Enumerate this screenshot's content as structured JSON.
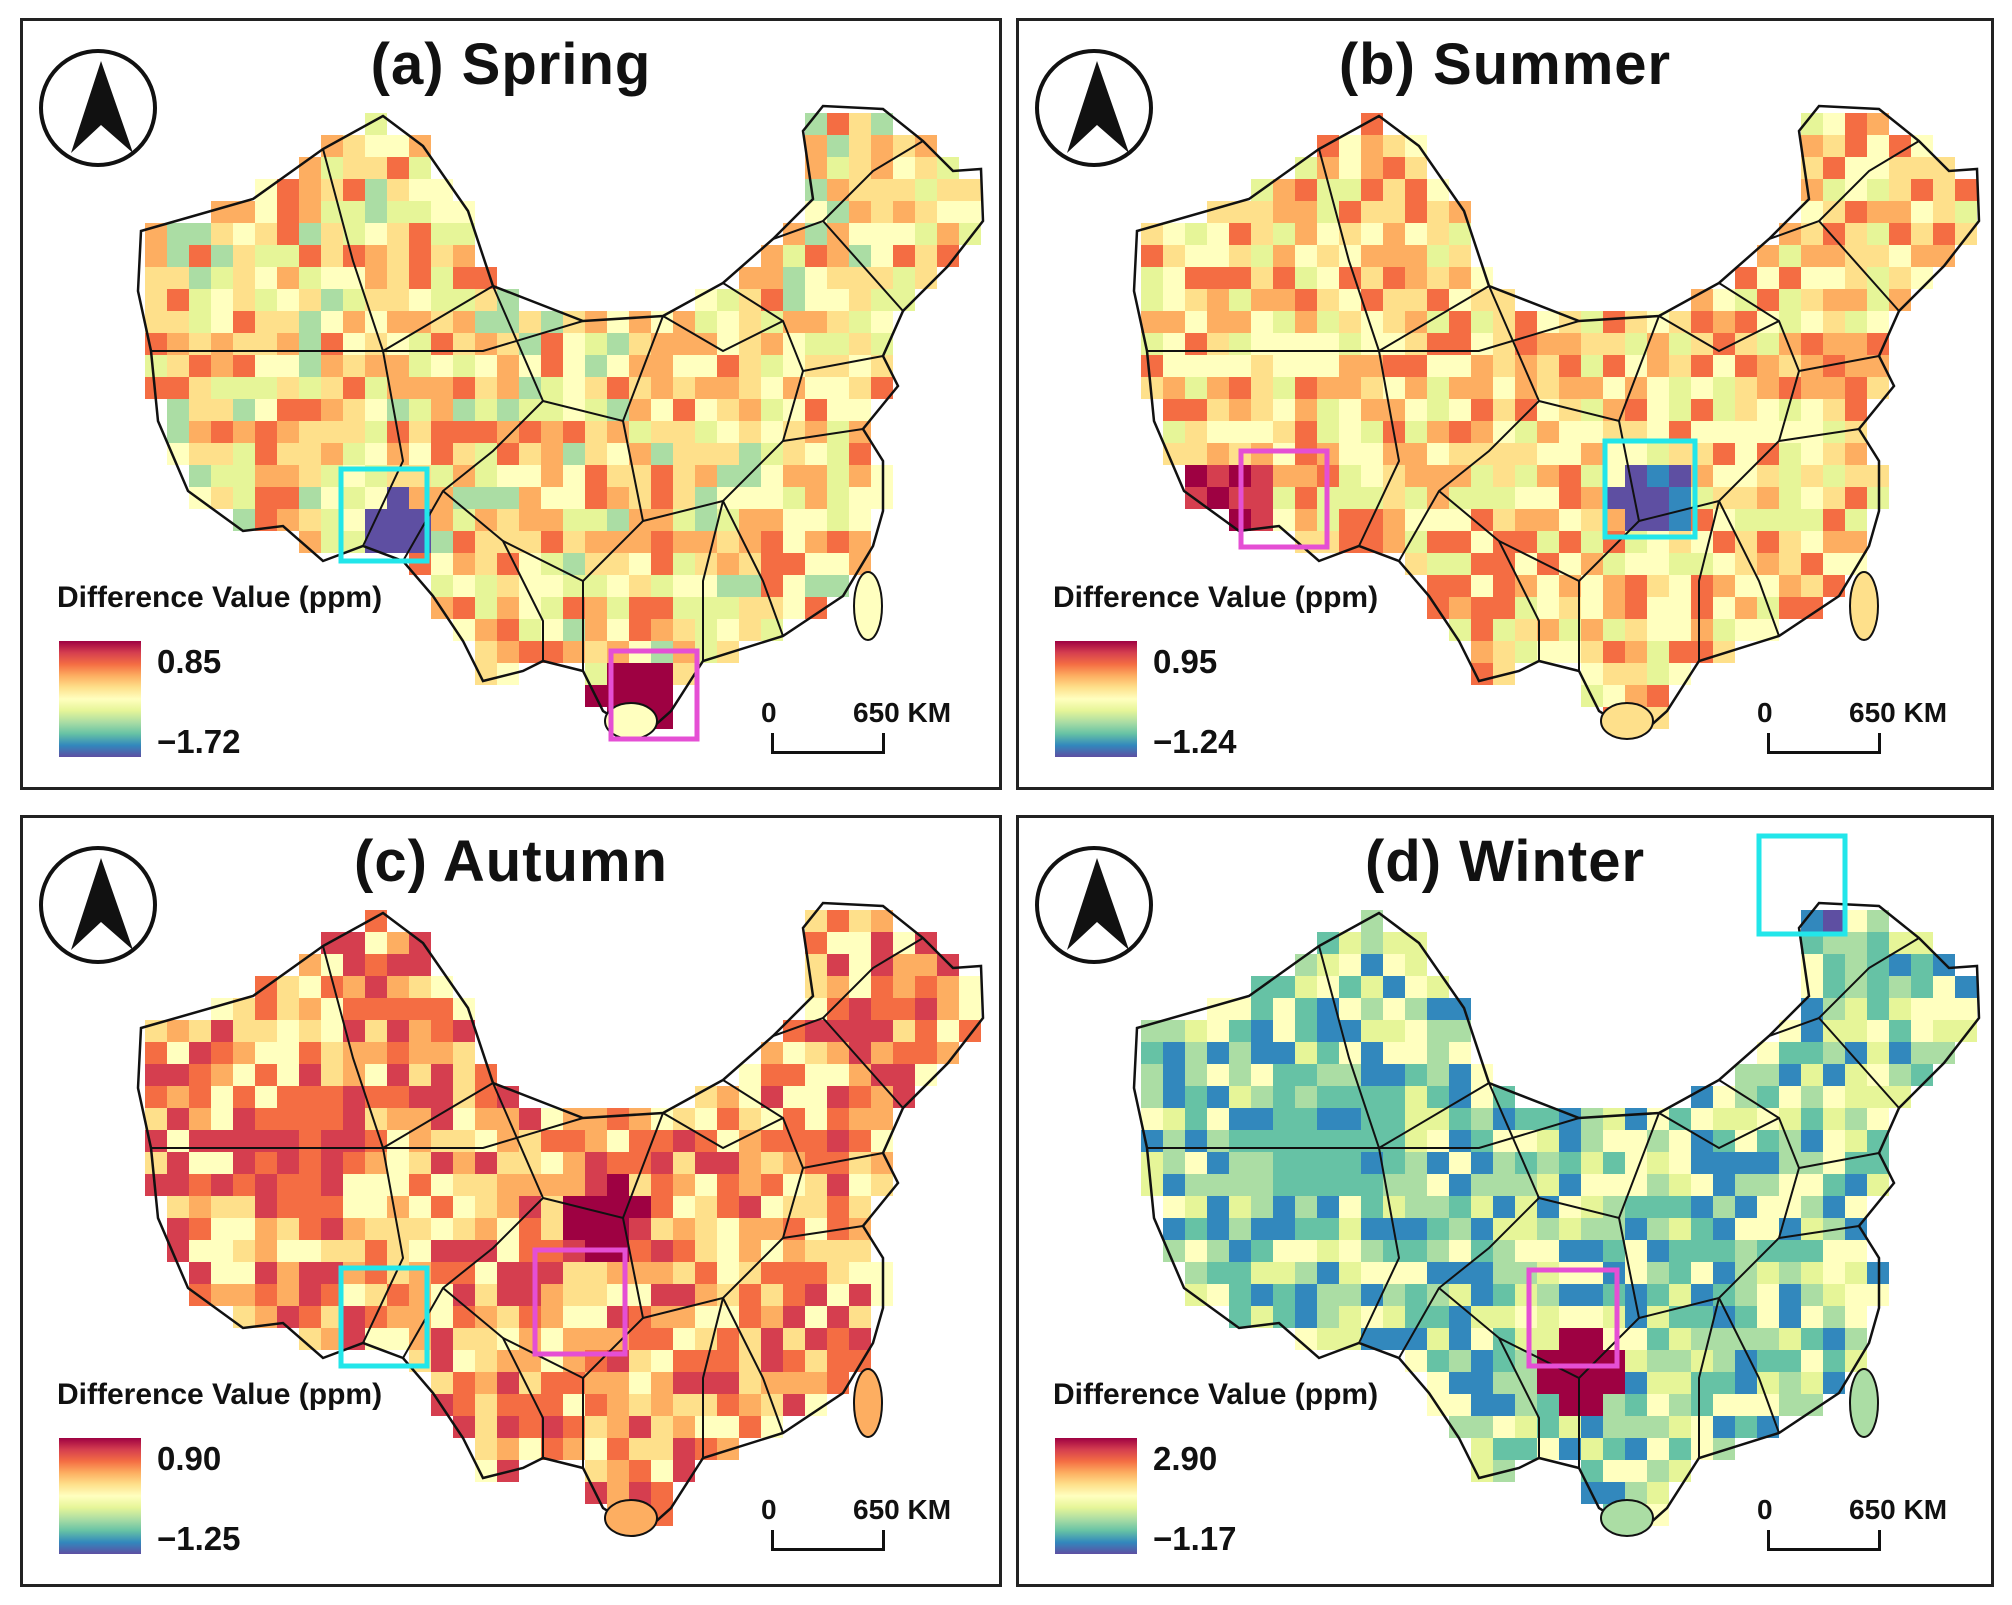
{
  "panels": [
    {
      "title": "(a) Spring",
      "legend_title": "Difference Value (ppm)",
      "max": "0.85",
      "min": "−1.72",
      "scale_zero": "0",
      "scale_label": "650 KM"
    },
    {
      "title": "(b) Summer",
      "legend_title": "Difference Value (ppm)",
      "max": "0.95",
      "min": "−1.24",
      "scale_zero": "0",
      "scale_label": "650 KM"
    },
    {
      "title": "(c) Autumn",
      "legend_title": "Difference Value (ppm)",
      "max": "0.90",
      "min": "−1.25",
      "scale_zero": "0",
      "scale_label": "650 KM"
    },
    {
      "title": "(d) Winter",
      "legend_title": "Difference Value (ppm)",
      "max": "2.90",
      "min": "−1.17",
      "scale_zero": "0",
      "scale_label": "650 KM"
    }
  ],
  "colors": {
    "ramp": [
      "#9e0142",
      "#d53e4f",
      "#f46d43",
      "#fdae61",
      "#fee08b",
      "#ffffbf",
      "#e6f598",
      "#abdda4",
      "#66c2a5",
      "#3288bd",
      "#5e4fa2"
    ],
    "highlight_magenta": "#e54fd4",
    "highlight_cyan": "#22e6ea",
    "boundary": "#111111"
  },
  "icons": {
    "north_arrow": "north-arrow-icon"
  }
}
